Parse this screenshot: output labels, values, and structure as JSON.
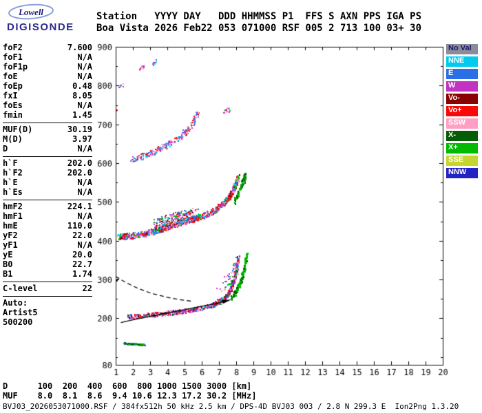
{
  "logo": {
    "top": "Lowell",
    "bottom": "DIGISONDE"
  },
  "header": {
    "line1": "Station   YYYY DAY   DDD HHMMSS P1  FFS S AXN PPS IGA PS",
    "line2": "Boa Vista 2026 Feb22 053 071000 RSF 005 2 713 100 03+ 30"
  },
  "params": {
    "groups": [
      {
        "rows": [
          [
            "foF2",
            "7.600"
          ],
          [
            "foF1",
            "N/A"
          ],
          [
            "foF1p",
            "N/A"
          ],
          [
            "foE",
            "N/A"
          ],
          [
            "foEp",
            "0.48"
          ],
          [
            "fxI",
            "8.05"
          ],
          [
            "foEs",
            "N/A"
          ],
          [
            "fmin",
            "1.45"
          ]
        ]
      },
      {
        "rows": [
          [
            "MUF(D)",
            "30.19"
          ],
          [
            "M(D)",
            "3.97"
          ],
          [
            "D",
            "N/A"
          ]
        ]
      },
      {
        "rows": [
          [
            "h`F",
            "202.0"
          ],
          [
            "h`F2",
            "202.0"
          ],
          [
            "h`E",
            "N/A"
          ],
          [
            "h`Es",
            "N/A"
          ]
        ]
      },
      {
        "rows": [
          [
            "hmF2",
            "224.1"
          ],
          [
            "hmF1",
            "N/A"
          ],
          [
            "hmE",
            "110.0"
          ],
          [
            "yF2",
            "22.0"
          ],
          [
            "yF1",
            "N/A"
          ],
          [
            "yE",
            "20.0"
          ],
          [
            "B0",
            "22.7"
          ],
          [
            "B1",
            "1.74"
          ]
        ]
      },
      {
        "rows": [
          [
            "C-level",
            "22"
          ]
        ]
      },
      {
        "rows": [
          [
            "Auto:",
            ""
          ],
          [
            "Artist5",
            ""
          ],
          [
            "500200",
            ""
          ]
        ]
      }
    ]
  },
  "legend": {
    "items": [
      {
        "label": "No Val",
        "color": "#8b8b9c",
        "text": "#1b1b70"
      },
      {
        "label": "NNE",
        "color": "#00cbee",
        "text": "#ffffff"
      },
      {
        "label": "E",
        "color": "#2a6fe8",
        "text": "#ffffff"
      },
      {
        "label": "W",
        "color": "#c233c2",
        "text": "#ffffff"
      },
      {
        "label": "Vo-",
        "color": "#8b0000",
        "text": "#ffffff"
      },
      {
        "label": "Vo+",
        "color": "#f80808",
        "text": "#ffffff"
      },
      {
        "label": "SSW",
        "color": "#ff9fc3",
        "text": "#ffffff"
      },
      {
        "label": "X-",
        "color": "#045c04",
        "text": "#ffffff"
      },
      {
        "label": "X+",
        "color": "#00bb00",
        "text": "#ffffff"
      },
      {
        "label": "SSE",
        "color": "#c6d52f",
        "text": "#ffffff"
      },
      {
        "label": "NNW",
        "color": "#2424c4",
        "text": "#ffffff"
      }
    ]
  },
  "footer": {
    "dmuf1": "D      100  200  400  600  800 1000 1500 3000 [km]",
    "dmuf2": "MUF    8.0  8.1  8.6  9.4 10.6 12.3 17.2 30.2 [MHz]",
    "status": "BVJ03_2026053071000.RSF / 384fx512h 50 kHz 2.5 km / DPS-4D BVJ03 003 / 2.8 N 299.3 E  Ion2Png 1.3.20"
  },
  "chart_data": {
    "type": "scatter",
    "title": "Ionogram Boa Vista 2026 Feb22 053 071000",
    "x_axis": {
      "min": 1,
      "max": 20,
      "unit": "MHz",
      "ticks": [
        1,
        2,
        3,
        4,
        5,
        6,
        7,
        8,
        9,
        10,
        11,
        12,
        13,
        14,
        15,
        16,
        17,
        18,
        19,
        20
      ]
    },
    "y_axis": {
      "min": 80,
      "max": 900,
      "unit": "km",
      "ticks": [
        80,
        200,
        300,
        400,
        500,
        600,
        700,
        800,
        900
      ],
      "minor_step": 50
    },
    "series": [
      {
        "name": "f-trace-1st-hop",
        "dots": 650,
        "jitter": [
          0.06,
          5
        ],
        "dot": [
          2,
          3
        ],
        "colors": [
          "#ff9fc3",
          "#c233c2",
          "#c233c2",
          "#f80808",
          "#8b0000",
          "#2a6fe8",
          "#00cbee",
          "#ff9fc3",
          "#c233c2",
          "#045c04"
        ],
        "path": [
          [
            1.7,
            206
          ],
          [
            2.2,
            208
          ],
          [
            2.8,
            210
          ],
          [
            3.4,
            212
          ],
          [
            4.0,
            215
          ],
          [
            4.6,
            218
          ],
          [
            5.2,
            222
          ],
          [
            5.8,
            227
          ],
          [
            6.3,
            232
          ],
          [
            6.7,
            238
          ],
          [
            7.0,
            245
          ],
          [
            7.3,
            254
          ],
          [
            7.55,
            267
          ],
          [
            7.75,
            285
          ],
          [
            7.9,
            308
          ],
          [
            8.0,
            332
          ],
          [
            8.1,
            358
          ]
        ]
      },
      {
        "name": "f-trace-1st-hop-xmode",
        "dots": 140,
        "jitter": [
          0.05,
          7
        ],
        "dot": [
          2,
          3
        ],
        "colors": [
          "#00bb00",
          "#045c04",
          "#00bb00"
        ],
        "path": [
          [
            7.7,
            255
          ],
          [
            8.0,
            272
          ],
          [
            8.2,
            292
          ],
          [
            8.35,
            315
          ],
          [
            8.5,
            342
          ],
          [
            8.6,
            368
          ]
        ]
      },
      {
        "name": "cusp-spread",
        "dots": 70,
        "jitter": [
          0.18,
          22
        ],
        "dot": [
          2,
          2
        ],
        "colors": [
          "#ff9fc3",
          "#c233c2",
          "#00bb00",
          "#2a6fe8"
        ],
        "path": [
          [
            6.9,
            255
          ],
          [
            7.3,
            280
          ],
          [
            7.7,
            310
          ],
          [
            8.0,
            340
          ]
        ]
      },
      {
        "name": "f-trace-2nd-hop",
        "dots": 750,
        "jitter": [
          0.07,
          7
        ],
        "dot": [
          2,
          3
        ],
        "colors": [
          "#f80808",
          "#c233c2",
          "#ff9fc3",
          "#2a6fe8",
          "#00cbee",
          "#8b0000",
          "#c233c2",
          "#ff9fc3",
          "#f80808",
          "#00bb00"
        ],
        "path": [
          [
            1.15,
            411
          ],
          [
            1.5,
            413
          ],
          [
            1.9,
            415
          ],
          [
            2.4,
            418
          ],
          [
            2.9,
            423
          ],
          [
            3.4,
            429
          ],
          [
            3.9,
            436
          ],
          [
            4.4,
            443
          ],
          [
            4.9,
            450
          ],
          [
            5.4,
            457
          ],
          [
            5.9,
            464
          ],
          [
            6.4,
            473
          ],
          [
            6.8,
            483
          ],
          [
            7.2,
            496
          ],
          [
            7.5,
            511
          ],
          [
            7.75,
            528
          ],
          [
            7.95,
            548
          ],
          [
            8.1,
            565
          ]
        ]
      },
      {
        "name": "2nd-hop-spread-blob",
        "dots": 320,
        "jitter": [
          0.22,
          16
        ],
        "dot": [
          2,
          2
        ],
        "colors": [
          "#f80808",
          "#c233c2",
          "#ff9fc3",
          "#2a6fe8",
          "#00cbee",
          "#00bb00",
          "#8b0000"
        ],
        "path": [
          [
            3.3,
            442
          ],
          [
            3.9,
            450
          ],
          [
            4.5,
            458
          ],
          [
            5.1,
            464
          ],
          [
            5.6,
            470
          ]
        ]
      },
      {
        "name": "2nd-hop-xmode",
        "dots": 70,
        "jitter": [
          0.06,
          8
        ],
        "dot": [
          2,
          3
        ],
        "colors": [
          "#00bb00",
          "#045c04"
        ],
        "path": [
          [
            7.9,
            505
          ],
          [
            8.15,
            528
          ],
          [
            8.35,
            552
          ],
          [
            8.5,
            572
          ]
        ]
      },
      {
        "name": "f-trace-3rd-hop",
        "dots": 260,
        "jitter": [
          0.09,
          8
        ],
        "dot": [
          2,
          2
        ],
        "colors": [
          "#c233c2",
          "#ff9fc3",
          "#f80808",
          "#2a6fe8",
          "#00cbee",
          "#c233c2",
          "#ff9fc3"
        ],
        "path": [
          [
            1.9,
            612
          ],
          [
            2.3,
            616
          ],
          [
            2.7,
            622
          ],
          [
            3.1,
            629
          ],
          [
            3.5,
            637
          ],
          [
            3.9,
            646
          ],
          [
            4.3,
            656
          ],
          [
            4.7,
            668
          ],
          [
            5.0,
            680
          ],
          [
            5.3,
            695
          ],
          [
            5.55,
            712
          ],
          [
            5.75,
            728
          ]
        ]
      },
      {
        "name": "3rd-hop-top-scatter",
        "dots": 14,
        "jitter": [
          0.12,
          6
        ],
        "dot": [
          2,
          2
        ],
        "colors": [
          "#c233c2",
          "#00bb00",
          "#ff9fc3"
        ],
        "path": [
          [
            7.3,
            733
          ],
          [
            7.55,
            741
          ]
        ]
      },
      {
        "name": "4th-hop-remnant-a",
        "dots": 10,
        "jitter": [
          0.08,
          5
        ],
        "dot": [
          2,
          2
        ],
        "colors": [
          "#c233c2",
          "#2a6fe8",
          "#ff9fc3"
        ],
        "path": [
          [
            1.2,
            798
          ],
          [
            1.45,
            806
          ]
        ]
      },
      {
        "name": "4th-hop-remnant-b",
        "dots": 12,
        "jitter": [
          0.08,
          5
        ],
        "dot": [
          2,
          2
        ],
        "colors": [
          "#c233c2",
          "#ff9fc3",
          "#f80808"
        ],
        "path": [
          [
            2.35,
            842
          ],
          [
            2.6,
            850
          ]
        ]
      },
      {
        "name": "4th-hop-remnant-c",
        "dots": 10,
        "jitter": [
          0.08,
          5
        ],
        "dot": [
          2,
          2
        ],
        "colors": [
          "#c233c2",
          "#2a6fe8",
          "#00cbee"
        ],
        "path": [
          [
            3.1,
            857
          ],
          [
            3.35,
            866
          ]
        ]
      },
      {
        "name": "e-layer-trace",
        "dots": 110,
        "jitter": [
          0.04,
          2
        ],
        "dot": [
          3,
          2
        ],
        "colors": [
          "#00bb00",
          "#045c04",
          "#00bb00",
          "#2a6fe8"
        ],
        "path": [
          [
            1.45,
            137
          ],
          [
            1.9,
            135
          ],
          [
            2.3,
            134
          ],
          [
            2.6,
            133
          ]
        ]
      },
      {
        "name": "left-edge-marks-300km",
        "dots": 6,
        "jitter": [
          0.04,
          3
        ],
        "dot": [
          2,
          2
        ],
        "colors": [
          "#000000",
          "#333333"
        ],
        "path": [
          [
            1.0,
            298
          ],
          [
            1.1,
            302
          ]
        ]
      },
      {
        "name": "left-edge-mark-735km",
        "dots": 3,
        "jitter": [
          0.03,
          2
        ],
        "dot": [
          2,
          2
        ],
        "colors": [
          "#f80808"
        ],
        "path": [
          [
            1.0,
            736
          ],
          [
            1.05,
            738
          ]
        ]
      }
    ],
    "lines": [
      {
        "name": "artist-profile-extrapolated",
        "style": "dashed",
        "dash": [
          6,
          4
        ],
        "color": "#000000",
        "width": 1.3,
        "arrow_end": false,
        "path": [
          [
            1.0,
            308
          ],
          [
            1.6,
            292
          ],
          [
            2.3,
            277
          ],
          [
            3.1,
            264
          ],
          [
            3.9,
            255
          ],
          [
            4.7,
            248
          ],
          [
            5.4,
            244
          ]
        ]
      },
      {
        "name": "artist-fitted-trace",
        "style": "solid",
        "dash": [],
        "color": "#000000",
        "width": 1.3,
        "arrow_end": true,
        "path": [
          [
            1.3,
            189
          ],
          [
            2.0,
            196
          ],
          [
            2.8,
            203
          ],
          [
            3.6,
            210
          ],
          [
            4.4,
            217
          ],
          [
            5.2,
            224
          ],
          [
            6.0,
            231
          ],
          [
            6.7,
            237
          ],
          [
            7.2,
            242
          ],
          [
            7.45,
            245
          ]
        ]
      }
    ]
  }
}
